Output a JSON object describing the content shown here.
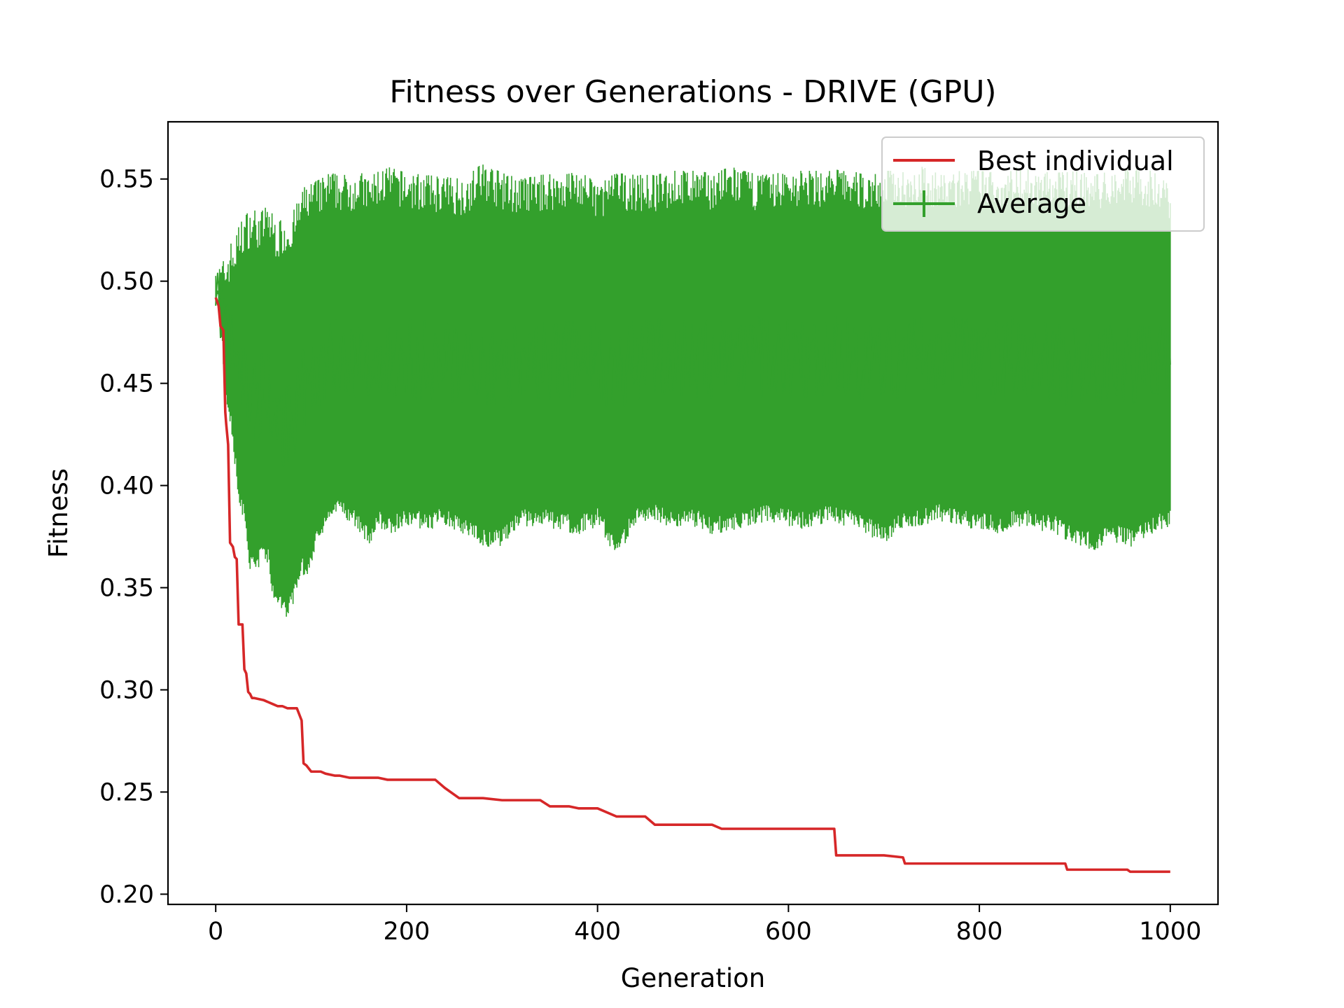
{
  "chart_data": {
    "type": "line",
    "title": "Fitness over Generations - DRIVE (GPU)",
    "xlabel": "Generation",
    "ylabel": "Fitness",
    "xlim": [
      -50,
      1050
    ],
    "ylim": [
      0.195,
      0.578
    ],
    "xticks": [
      0,
      200,
      400,
      600,
      800,
      1000
    ],
    "yticks": [
      0.2,
      0.25,
      0.3,
      0.35,
      0.4,
      0.45,
      0.5,
      0.55
    ],
    "grid": false,
    "legend_position": "upper right",
    "colors": {
      "best": "#d62728",
      "average": "#33a02c"
    },
    "series": [
      {
        "name": "Best individual",
        "style": "line",
        "x": [
          0,
          3,
          5,
          8,
          10,
          11,
          13,
          15,
          18,
          20,
          22,
          24,
          26,
          28,
          30,
          32,
          34,
          36,
          38,
          40,
          50,
          55,
          60,
          65,
          70,
          75,
          80,
          85,
          90,
          92,
          95,
          100,
          110,
          115,
          125,
          130,
          140,
          170,
          180,
          200,
          230,
          240,
          255,
          260,
          280,
          300,
          310,
          340,
          350,
          370,
          380,
          400,
          420,
          430,
          450,
          460,
          470,
          480,
          500,
          520,
          530,
          560,
          600,
          640,
          648,
          650,
          700,
          720,
          722,
          760,
          800,
          880,
          890,
          892,
          900,
          940,
          950,
          955,
          958,
          970,
          1000
        ],
        "y": [
          0.492,
          0.488,
          0.478,
          0.476,
          0.436,
          0.43,
          0.42,
          0.372,
          0.37,
          0.365,
          0.364,
          0.332,
          0.332,
          0.332,
          0.31,
          0.308,
          0.299,
          0.298,
          0.296,
          0.296,
          0.295,
          0.294,
          0.293,
          0.292,
          0.292,
          0.291,
          0.291,
          0.291,
          0.285,
          0.264,
          0.263,
          0.26,
          0.26,
          0.259,
          0.258,
          0.258,
          0.257,
          0.257,
          0.256,
          0.256,
          0.256,
          0.252,
          0.247,
          0.247,
          0.247,
          0.246,
          0.246,
          0.246,
          0.243,
          0.243,
          0.242,
          0.242,
          0.238,
          0.238,
          0.238,
          0.234,
          0.234,
          0.234,
          0.234,
          0.234,
          0.232,
          0.232,
          0.232,
          0.232,
          0.232,
          0.219,
          0.219,
          0.218,
          0.215,
          0.215,
          0.215,
          0.215,
          0.215,
          0.212,
          0.212,
          0.212,
          0.212,
          0.212,
          0.211,
          0.211,
          0.211
        ]
      },
      {
        "name": "Average",
        "style": "errorbar",
        "note": "mean ± spread per generation, values sampled every 5 generations",
        "x": [
          0,
          5,
          10,
          15,
          20,
          25,
          30,
          35,
          40,
          45,
          50,
          55,
          60,
          65,
          70,
          75,
          80,
          85,
          90,
          95,
          100,
          110,
          120,
          130,
          140,
          150,
          160,
          170,
          180,
          200,
          220,
          240,
          260,
          280,
          300,
          320,
          340,
          360,
          380,
          400,
          420,
          440,
          460,
          480,
          500,
          520,
          540,
          560,
          580,
          600,
          620,
          640,
          660,
          680,
          700,
          720,
          740,
          760,
          780,
          800,
          820,
          840,
          860,
          880,
          900,
          920,
          940,
          960,
          980,
          1000
        ],
        "upper": [
          0.498,
          0.5,
          0.503,
          0.51,
          0.512,
          0.52,
          0.524,
          0.526,
          0.527,
          0.525,
          0.527,
          0.53,
          0.524,
          0.52,
          0.523,
          0.522,
          0.525,
          0.53,
          0.535,
          0.54,
          0.54,
          0.542,
          0.545,
          0.544,
          0.544,
          0.546,
          0.542,
          0.546,
          0.548,
          0.545,
          0.544,
          0.543,
          0.542,
          0.55,
          0.545,
          0.542,
          0.544,
          0.545,
          0.546,
          0.54,
          0.545,
          0.544,
          0.544,
          0.546,
          0.546,
          0.545,
          0.548,
          0.545,
          0.544,
          0.546,
          0.546,
          0.546,
          0.547,
          0.544,
          0.546,
          0.546,
          0.548,
          0.544,
          0.546,
          0.546,
          0.545,
          0.548,
          0.546,
          0.545,
          0.546,
          0.544,
          0.546,
          0.548,
          0.546,
          0.54
        ],
        "lower": [
          0.495,
          0.48,
          0.44,
          0.43,
          0.41,
          0.39,
          0.38,
          0.36,
          0.355,
          0.36,
          0.365,
          0.36,
          0.345,
          0.34,
          0.335,
          0.335,
          0.34,
          0.345,
          0.36,
          0.35,
          0.36,
          0.375,
          0.38,
          0.385,
          0.38,
          0.378,
          0.37,
          0.38,
          0.375,
          0.38,
          0.378,
          0.38,
          0.375,
          0.37,
          0.37,
          0.38,
          0.38,
          0.378,
          0.376,
          0.38,
          0.365,
          0.38,
          0.382,
          0.378,
          0.38,
          0.376,
          0.378,
          0.38,
          0.382,
          0.38,
          0.378,
          0.382,
          0.38,
          0.376,
          0.372,
          0.378,
          0.38,
          0.382,
          0.38,
          0.378,
          0.376,
          0.38,
          0.378,
          0.376,
          0.37,
          0.368,
          0.372,
          0.37,
          0.375,
          0.38
        ]
      }
    ]
  }
}
